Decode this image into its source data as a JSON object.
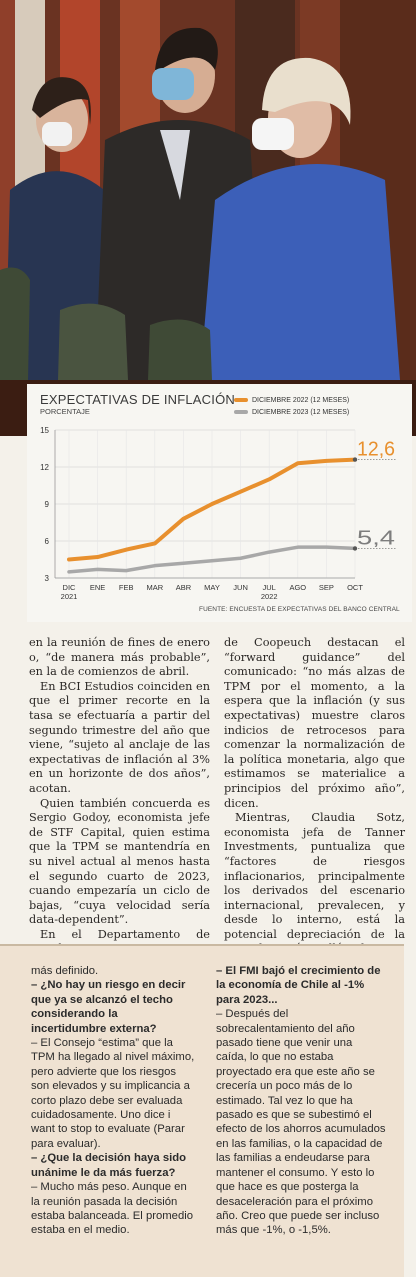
{
  "photo": {
    "alt": "Consejeros del Banco Central"
  },
  "chart": {
    "title": "EXPECTATIVAS DE INFLACIÓN",
    "subtitle": "PORCENTAJE",
    "source": "FUENTE: ENCUESTA DE EXPECTATIVAS DEL BANCO CENTRAL",
    "legend": [
      "DICIEMBRE 2022 (12 MESES)",
      "DICIEMBRE 2023 (12 MESES)"
    ],
    "end_labels": [
      "12,6",
      "5,4"
    ]
  },
  "chart_data": {
    "type": "line",
    "title": "EXPECTATIVAS DE INFLACIÓN",
    "ylabel": "PORCENTAJE",
    "categories": [
      "DIC 2021",
      "ENE",
      "FEB",
      "MAR",
      "ABR",
      "MAY",
      "JUN",
      "JUL 2022",
      "AGO",
      "SEP",
      "OCT"
    ],
    "x_tick_labels": [
      "DIC",
      "ENE",
      "FEB",
      "MAR",
      "ABR",
      "MAY",
      "JUN",
      "JUL",
      "AGO",
      "SEP",
      "OCT"
    ],
    "x_tick_sublabels": [
      "2021",
      "",
      "",
      "",
      "",
      "",
      "",
      "2022",
      "",
      "",
      ""
    ],
    "ylim": [
      3,
      15
    ],
    "y_ticks": [
      3,
      6,
      9,
      12,
      15
    ],
    "grid": true,
    "legend_position": "top-right",
    "series": [
      {
        "name": "DICIEMBRE 2022 (12 MESES)",
        "color": "#e8902e",
        "values": [
          4.5,
          4.7,
          5.3,
          5.8,
          7.8,
          9.0,
          10.0,
          11.0,
          12.3,
          12.5,
          12.6
        ]
      },
      {
        "name": "DICIEMBRE 2023 (12 MESES)",
        "color": "#a8a8a8",
        "values": [
          3.5,
          3.7,
          3.6,
          4.0,
          4.2,
          4.4,
          4.6,
          5.1,
          5.5,
          5.5,
          5.4
        ]
      }
    ]
  },
  "article": {
    "col1": [
      "en la reunión de fines de enero o, “de manera más probable”, en la de comienzos de abril.",
      "En BCI Estudios coinciden en que el primer recorte en la tasa se efectuaría a partir del segundo trimestre del año que viene, “sujeto al anclaje de las expectativas de inflación al 3% en un horizonte de dos años”, acotan.",
      "Quien también concuerda es Sergio Godoy, economista jefe de STF Capital, quien estima que la TPM se mantendría en su nivel actual al menos hasta el segundo cuarto de 2023, cuando empezaría un ciclo de bajas, “cuya velocidad sería data-dependent”.",
      "En el Departamento de Estudios"
    ],
    "col2": [
      "de Coopeuch destacan el “forward guidance” del comunicado: “no más alzas de TPM por el momento, a la espera que la inflación (y sus expectativas) muestre claros indicios de retrocesos para comenzar la normalización de la política monetaria, algo que estimamos se materialice a principios del próximo año”, dicen.",
      "Mientras, Claudia Sotz, economista jefa de Tanner Investments, puntualiza que “factores de riesgos inflacionarios, principalmente los derivados del escenario internacional, prevalecen, y desde lo interno, está la potencial depreciación de la moneda más allá de sus fundamentales”."
    ]
  },
  "interview": {
    "left": [
      {
        "type": "a",
        "text": "más definido."
      },
      {
        "type": "q",
        "text": "– ¿No hay un riesgo en decir que ya se alcanzó el techo considerando la incertidumbre externa?"
      },
      {
        "type": "a",
        "text": "– El Consejo “estima” que la TPM ha llegado al nivel máximo, pero advierte que los riesgos son elevados y su implicancia a corto plazo debe ser evaluada cuidadosamente. Uno dice i want to stop to evaluate (Parar para evaluar)."
      },
      {
        "type": "q",
        "text": "– ¿Que la decisión haya sido unánime le da más fuerza?"
      },
      {
        "type": "a",
        "text": "– Mucho más peso. Aunque en la reunión pasada la decisión estaba balanceada. El promedio estaba en el medio."
      }
    ],
    "right": [
      {
        "type": "q",
        "text": "– El FMI bajó el crecimiento de la economía de Chile al -1% para 2023..."
      },
      {
        "type": "a",
        "text": "– Después del sobrecalentamiento del año pasado tiene que venir una caída, lo que no estaba proyectado era que este año se crecería un poco más de lo estimado. Tal vez lo que ha pasado es que se subestimó el efecto de los ahorros acumulados en las familias, o la capacidad de las familias a endeudarse para mantener el consumo. Y esto lo que hace es que posterga la desaceleración para el próximo año. Creo que puede ser incluso más que -1%, o -1,5%."
      }
    ]
  }
}
